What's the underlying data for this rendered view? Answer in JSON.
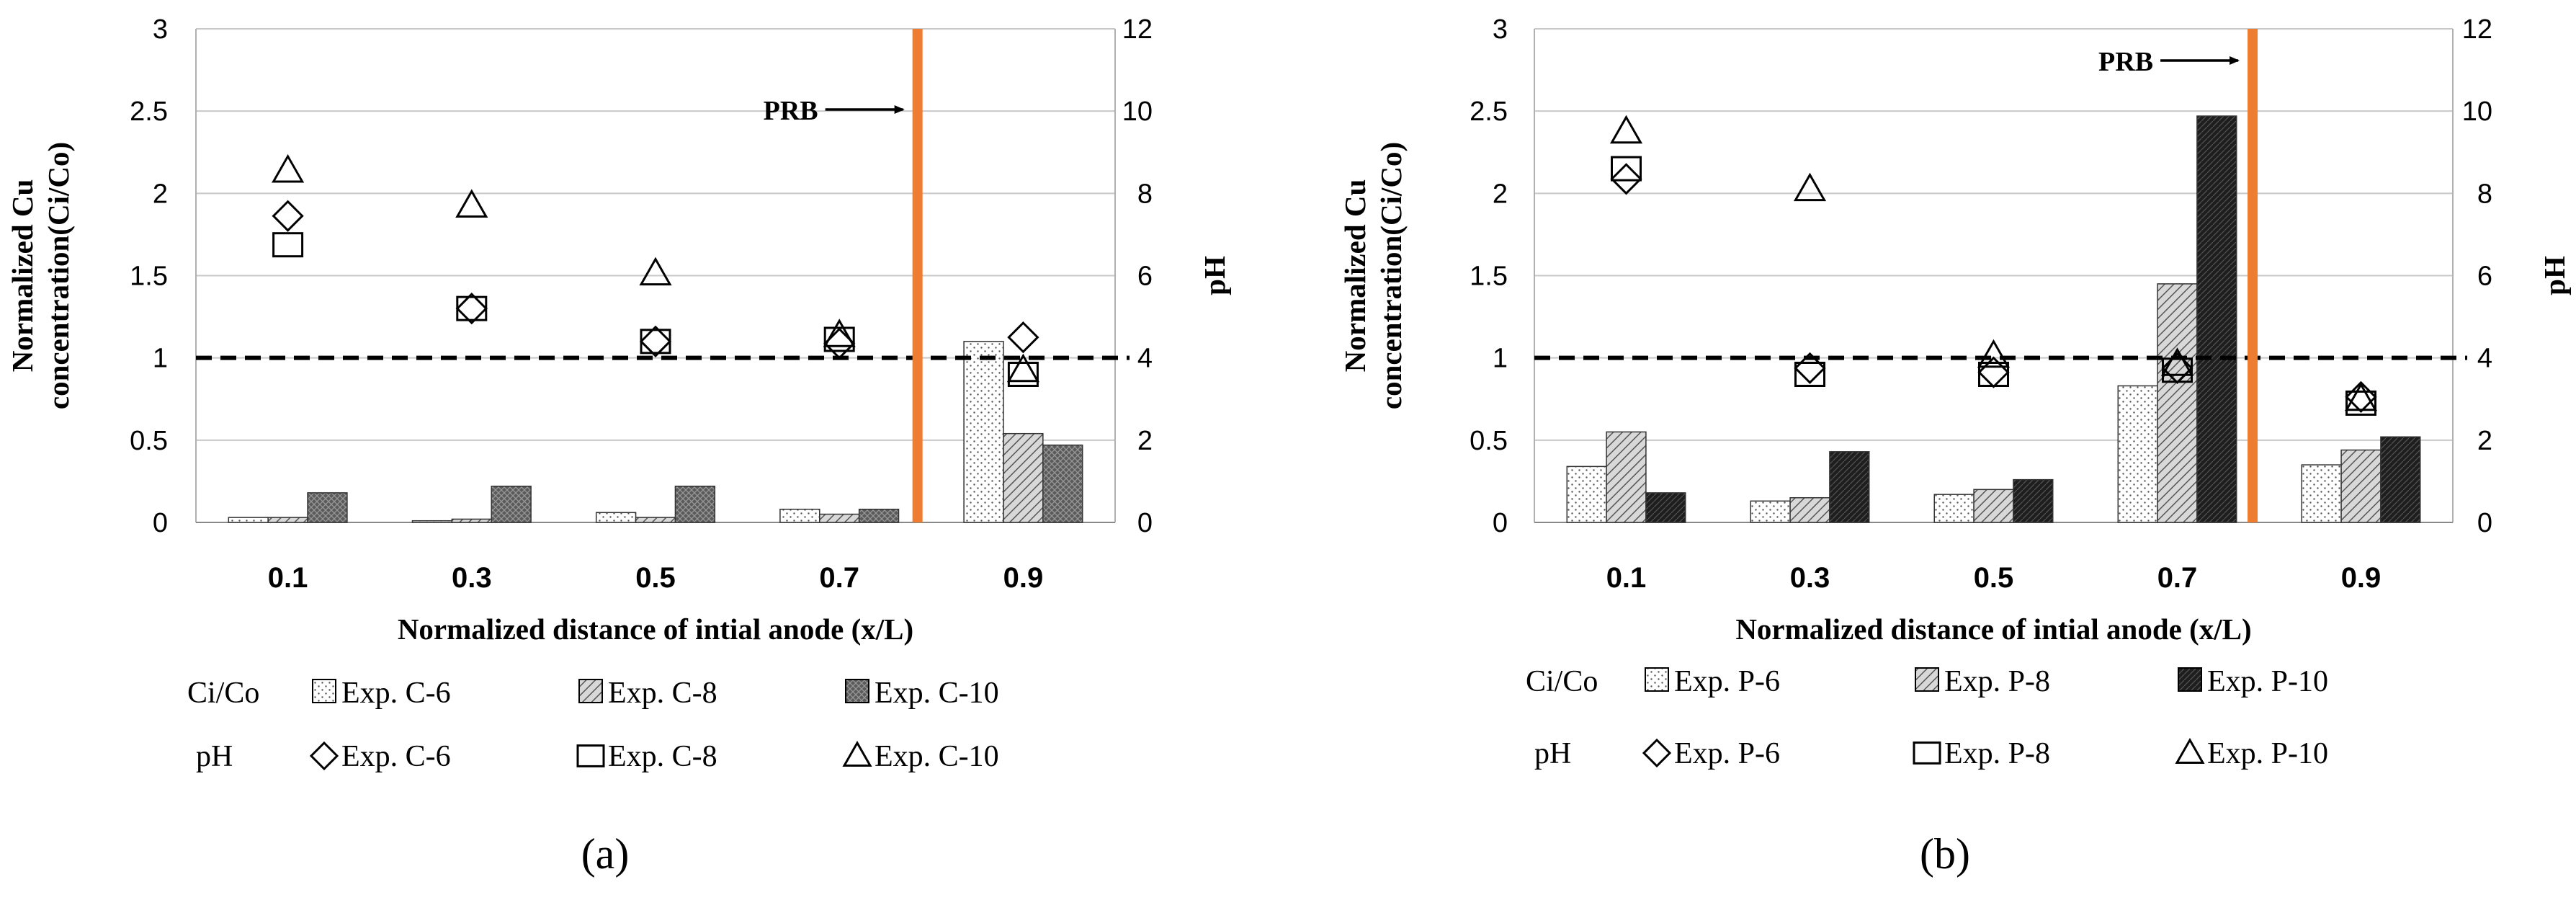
{
  "chart_data": [
    {
      "type": "bar",
      "panel_label": "(a)",
      "categories": [
        "0.1",
        "0.3",
        "0.5",
        "0.7",
        "0.9"
      ],
      "xlabel": "Normalized distance of intial anode (x/L)",
      "ylabel_line1": "Normalized Cu",
      "ylabel_line2": "concentration(Ci/Co)",
      "y2label": "pH",
      "ylim": [
        0,
        3
      ],
      "yticks": [
        "0",
        "0.5",
        "1",
        "1.5",
        "2",
        "2.5",
        "3"
      ],
      "y2lim": [
        0,
        12
      ],
      "y2ticks": [
        "0",
        "2",
        "4",
        "6",
        "8",
        "10",
        "12"
      ],
      "reference_line": 1.0,
      "prb_position": 0.785,
      "prb_label": "PRB",
      "bar_series": [
        {
          "name": "Exp. C-6",
          "pattern": "dots",
          "values": [
            0.03,
            0.01,
            0.06,
            0.08,
            1.1
          ]
        },
        {
          "name": "Exp. C-8",
          "pattern": "diag",
          "values": [
            0.03,
            0.02,
            0.03,
            0.05,
            0.54
          ]
        },
        {
          "name": "Exp. C-10",
          "pattern": "dark",
          "values": [
            0.18,
            0.22,
            0.22,
            0.08,
            0.47
          ]
        }
      ],
      "ph_series": [
        {
          "name": "Exp. C-6",
          "marker": "diamond",
          "values": [
            7.45,
            5.2,
            4.4,
            4.35,
            4.5
          ]
        },
        {
          "name": "Exp. C-8",
          "marker": "square",
          "values": [
            6.75,
            5.2,
            4.4,
            4.45,
            3.6
          ]
        },
        {
          "name": "Exp. C-10",
          "marker": "triangle",
          "values": [
            8.55,
            7.7,
            6.05,
            4.55,
            3.7
          ]
        }
      ],
      "legend": {
        "row1_label": "Ci/Co",
        "row2_label": "pH"
      }
    },
    {
      "type": "bar",
      "panel_label": "(b)",
      "categories": [
        "0.1",
        "0.3",
        "0.5",
        "0.7",
        "0.9"
      ],
      "xlabel": "Normalized distance of intial anode (x/L)",
      "ylabel_line1": "Normalized Cu",
      "ylabel_line2": "concentration(Ci/Co)",
      "y2label": "pH",
      "ylim": [
        0,
        3
      ],
      "yticks": [
        "0",
        "0.5",
        "1",
        "1.5",
        "2",
        "2.5",
        "3"
      ],
      "y2lim": [
        0,
        12
      ],
      "y2ticks": [
        "0",
        "2",
        "4",
        "6",
        "8",
        "10",
        "12"
      ],
      "reference_line": 1.0,
      "prb_position": 0.782,
      "prb_label": "PRB",
      "bar_series": [
        {
          "name": "Exp. P-6",
          "pattern": "dots",
          "values": [
            0.34,
            0.13,
            0.17,
            0.83,
            0.35
          ]
        },
        {
          "name": "Exp. P-8",
          "pattern": "diag",
          "values": [
            0.55,
            0.15,
            0.2,
            1.45,
            0.44
          ]
        },
        {
          "name": "Exp. P-10",
          "pattern": "black",
          "values": [
            0.18,
            0.43,
            0.26,
            2.47,
            0.52
          ]
        }
      ],
      "ph_series": [
        {
          "name": "Exp. P-6",
          "marker": "diamond",
          "values": [
            8.35,
            3.75,
            3.65,
            3.75,
            3.05
          ]
        },
        {
          "name": "Exp. P-8",
          "marker": "square",
          "values": [
            8.6,
            3.6,
            3.6,
            3.7,
            2.9
          ]
        },
        {
          "name": "Exp. P-10",
          "marker": "triangle",
          "values": [
            9.5,
            8.1,
            4.05,
            3.85,
            3.0
          ]
        }
      ],
      "legend": {
        "row1_label": "Ci/Co",
        "row2_label": "pH"
      }
    }
  ]
}
